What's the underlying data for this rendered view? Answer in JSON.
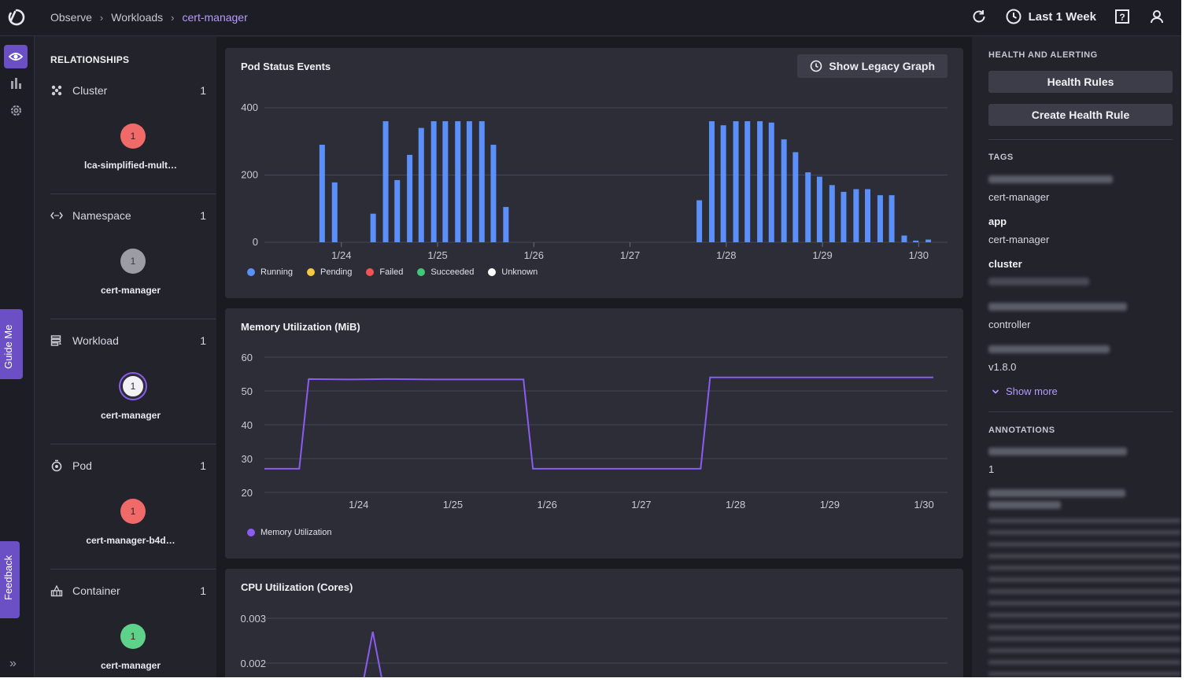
{
  "breadcrumb": [
    "Observe",
    "Workloads",
    "cert-manager"
  ],
  "header": {
    "time_range": "Last 1 Week"
  },
  "side_tabs": {
    "guide": "Guide Me",
    "feedback": "Feedback"
  },
  "relationships": {
    "title": "RELATIONSHIPS",
    "sections": [
      {
        "label": "Cluster",
        "count": "1",
        "node_value": "1",
        "node_label": "lca-simplified-mult…",
        "status_color": "#f06a6a",
        "icon": "cluster-icon"
      },
      {
        "label": "Namespace",
        "count": "1",
        "node_value": "1",
        "node_label": "cert-manager",
        "status_color": "#9b9ca4",
        "icon": "namespace-icon"
      },
      {
        "label": "Workload",
        "count": "1",
        "node_value": "1",
        "node_label": "cert-manager",
        "status_color": "#ffffff",
        "icon": "workload-icon"
      },
      {
        "label": "Pod",
        "count": "1",
        "node_value": "1",
        "node_label": "cert-manager-b4d…",
        "status_color": "#f06a6a",
        "icon": "pod-icon"
      },
      {
        "label": "Container",
        "count": "1",
        "node_value": "1",
        "node_label": "cert-manager",
        "status_color": "#5ed28a",
        "icon": "container-icon"
      }
    ]
  },
  "pod_status": {
    "title": "Pod Status Events",
    "button": "Show Legacy Graph",
    "legend": [
      {
        "name": "Running",
        "color": "#5b8ff9"
      },
      {
        "name": "Pending",
        "color": "#f5c842"
      },
      {
        "name": "Failed",
        "color": "#f05454"
      },
      {
        "name": "Succeeded",
        "color": "#42c77a"
      },
      {
        "name": "Unknown",
        "color": "#ffffff"
      }
    ]
  },
  "memory": {
    "title": "Memory Utilization (MiB)",
    "legend": "Memory Utilization",
    "color": "#8a5cf0"
  },
  "cpu": {
    "title": "CPU Utilization (Cores)",
    "color": "#8a5cf0"
  },
  "chart_data": [
    {
      "type": "bar",
      "title": "Pod Status Events",
      "series": [
        {
          "name": "Running",
          "color": "#5b8ff9",
          "x": [
            23.8,
            23.93,
            24.33,
            24.46,
            24.58,
            24.71,
            24.83,
            24.96,
            25.08,
            25.21,
            25.33,
            25.46,
            25.58,
            25.71,
            27.72,
            27.85,
            27.97,
            28.1,
            28.22,
            28.35,
            28.47,
            28.6,
            28.72,
            28.85,
            28.97,
            29.1,
            29.22,
            29.35,
            29.47,
            29.6,
            29.72,
            29.85,
            29.97,
            30.1
          ],
          "values": [
            290,
            178,
            85,
            360,
            185,
            260,
            340,
            360,
            360,
            360,
            360,
            360,
            290,
            105,
            125,
            360,
            348,
            360,
            360,
            360,
            356,
            306,
            268,
            208,
            195,
            170,
            150,
            158,
            158,
            140,
            140,
            20,
            5,
            8
          ]
        }
      ],
      "x_ticks": [
        "1/24",
        "1/25",
        "1/26",
        "1/27",
        "1/28",
        "1/29",
        "1/30"
      ],
      "y_ticks": [
        0,
        200,
        400
      ],
      "ylim": [
        0,
        400
      ],
      "xlim": [
        23.2,
        30.3
      ]
    },
    {
      "type": "line",
      "title": "Memory Utilization (MiB)",
      "series": [
        {
          "name": "Memory Utilization",
          "color": "#8a5cf0",
          "x": [
            23.0,
            23.37,
            23.47,
            23.9,
            24.3,
            24.8,
            25.2,
            25.6,
            25.75,
            25.85,
            26.5,
            27.0,
            27.63,
            27.73,
            28.5,
            29.5,
            30.1
          ],
          "values": [
            27,
            27,
            53.5,
            53.4,
            53.5,
            53.4,
            53.4,
            53.4,
            53.4,
            27,
            27,
            27,
            27,
            54,
            54,
            54,
            54
          ]
        }
      ],
      "x_ticks": [
        "1/24",
        "1/25",
        "1/26",
        "1/27",
        "1/28",
        "1/29",
        "1/30"
      ],
      "y_ticks": [
        20,
        30,
        40,
        50,
        60
      ],
      "ylim": [
        20,
        60
      ],
      "xlim": [
        23.0,
        30.25
      ]
    },
    {
      "type": "line",
      "title": "CPU Utilization (Cores)",
      "series": [
        {
          "name": "CPU",
          "color": "#8a5cf0",
          "x": [
            24.05,
            24.15,
            24.25
          ],
          "values": [
            0.0016,
            0.0027,
            0.0016
          ]
        }
      ],
      "y_ticks": [
        0.003,
        0.002
      ],
      "ylim": [
        0.0015,
        0.003
      ],
      "xlim": [
        23.0,
        30.25
      ]
    }
  ],
  "right_panel": {
    "health_title": "HEALTH AND ALERTING",
    "health_rules_button": "Health Rules",
    "create_rule_button": "Create Health Rule",
    "tags_title": "TAGS",
    "tags": [
      {
        "key": "",
        "value": "cert-manager"
      },
      {
        "key": "app",
        "value": "cert-manager"
      },
      {
        "key": "cluster",
        "value": ""
      },
      {
        "key": "",
        "value": "controller"
      },
      {
        "key": "",
        "value": "v1.8.0"
      }
    ],
    "show_more": "Show more",
    "annotations_title": "ANNOTATIONS",
    "annotation_value": "1"
  }
}
